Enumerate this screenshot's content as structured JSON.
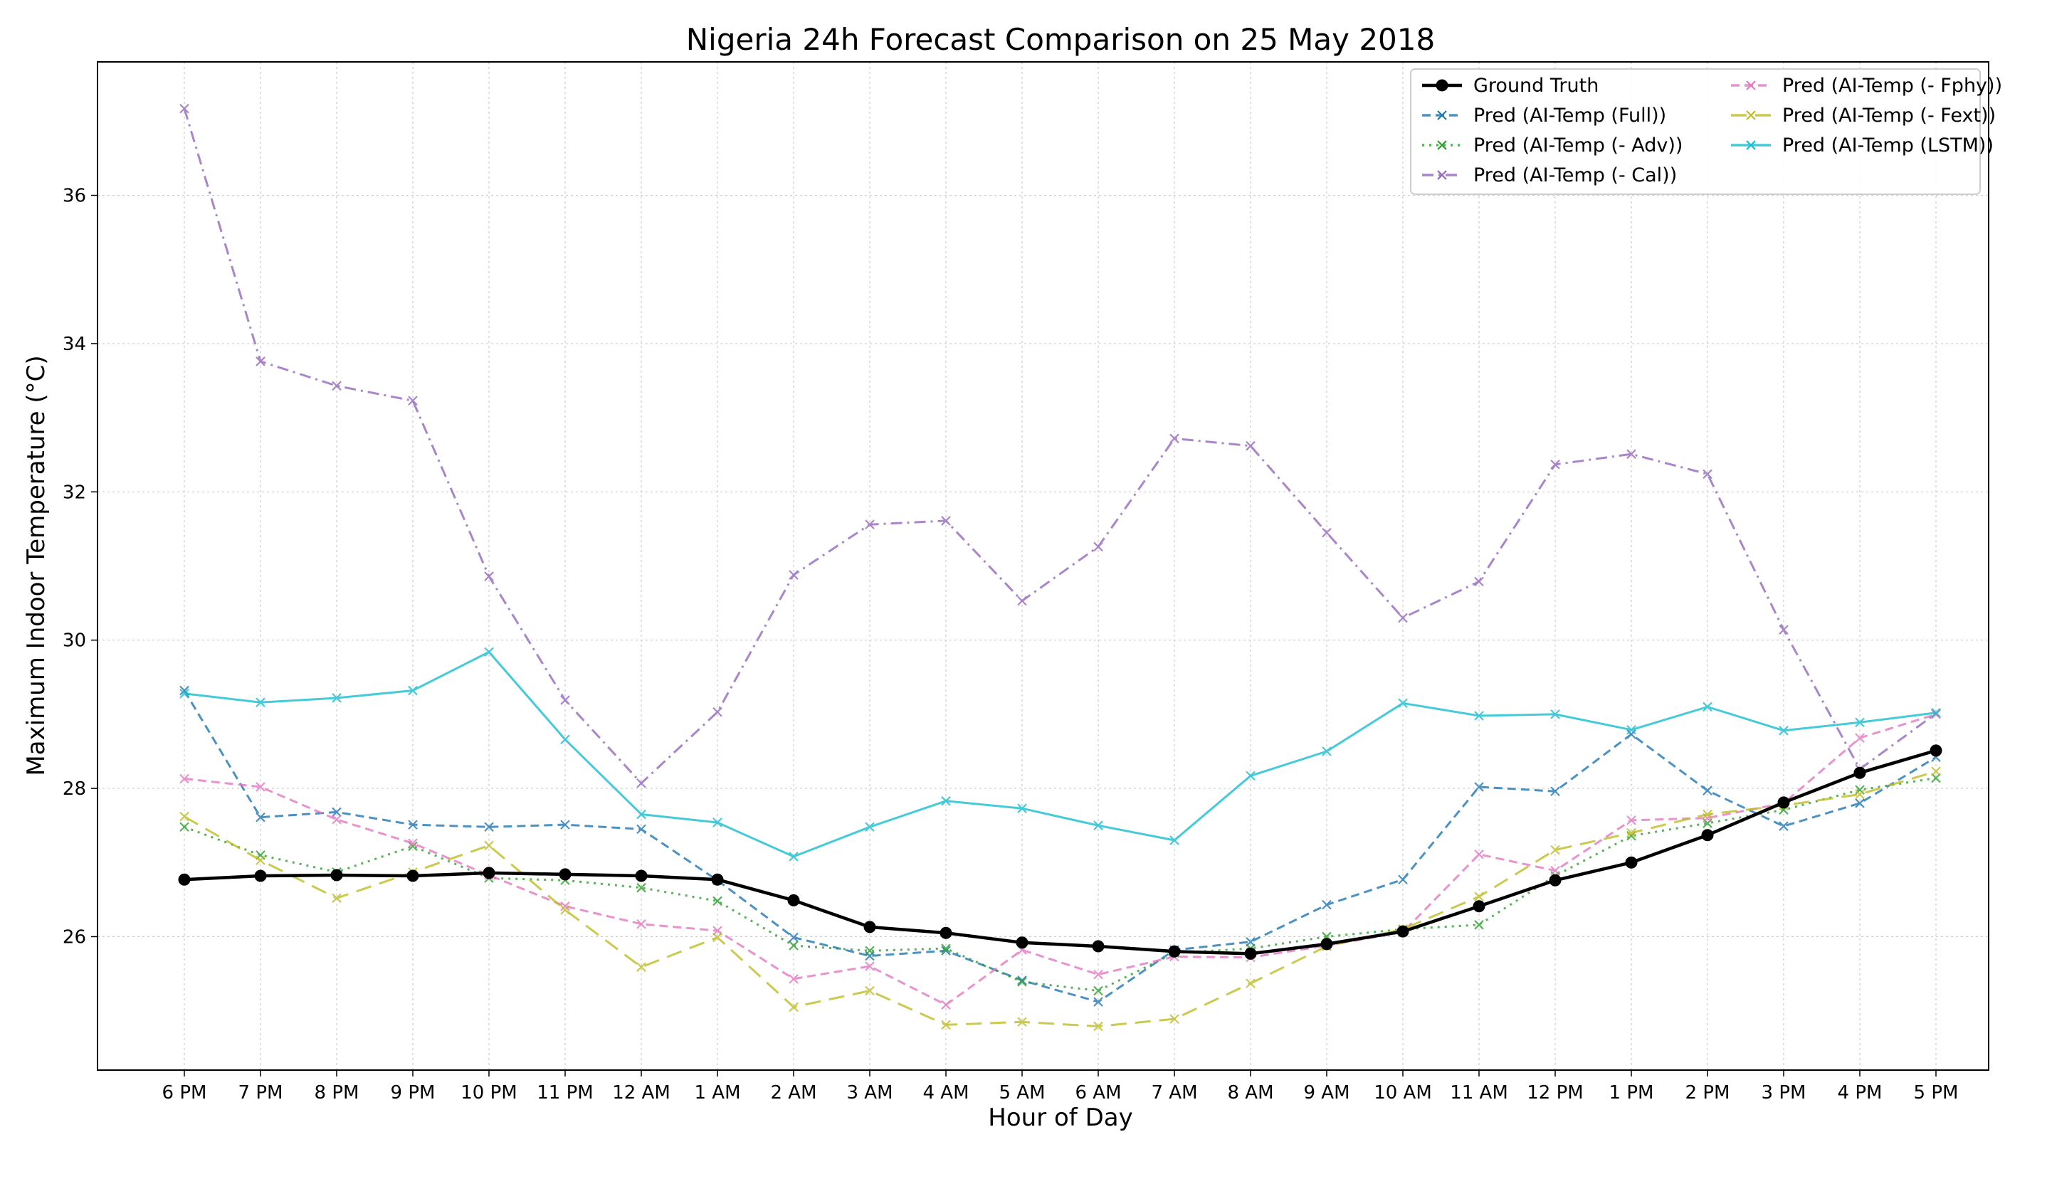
{
  "chart_data": {
    "type": "line",
    "title": "Nigeria 24h Forecast Comparison on 25 May 2018",
    "xlabel": "Hour of Day",
    "ylabel": "Maximum Indoor Temperature (°C)",
    "categories": [
      "6 PM",
      "7 PM",
      "8 PM",
      "9 PM",
      "10 PM",
      "11 PM",
      "12 AM",
      "1 AM",
      "2 AM",
      "3 AM",
      "4 AM",
      "5 AM",
      "6 AM",
      "7 AM",
      "8 AM",
      "9 AM",
      "10 AM",
      "11 AM",
      "12 PM",
      "1 PM",
      "2 PM",
      "3 PM",
      "4 PM",
      "5 PM"
    ],
    "ylim": [
      24.2,
      37.8
    ],
    "yticks": [
      26,
      28,
      30,
      32,
      34,
      36
    ],
    "grid": true,
    "legend_position": "top-right",
    "series": [
      {
        "name": "Ground Truth",
        "color": "#000000",
        "style": "solid",
        "marker": "circle",
        "values": [
          26.77,
          26.82,
          26.83,
          26.82,
          26.86,
          26.84,
          26.82,
          26.77,
          26.49,
          26.13,
          26.05,
          25.92,
          25.87,
          25.8,
          25.77,
          25.9,
          26.07,
          26.41,
          26.76,
          27.0,
          27.37,
          27.81,
          28.21,
          28.51
        ]
      },
      {
        "name": "Pred (AI-Temp (Full))",
        "color": "#1f77b4",
        "style": "dashed",
        "marker": "x",
        "values": [
          29.32,
          27.61,
          27.68,
          27.51,
          27.48,
          27.51,
          27.45,
          26.76,
          25.99,
          25.74,
          25.81,
          25.41,
          25.12,
          25.82,
          25.93,
          26.43,
          26.77,
          28.02,
          27.96,
          28.73,
          27.97,
          27.49,
          27.8,
          28.42
        ]
      },
      {
        "name": "Pred (AI-Temp (- Adv))",
        "color": "#2ca02c",
        "style": "dotted",
        "marker": "x",
        "values": [
          27.48,
          27.1,
          26.87,
          27.22,
          26.79,
          26.76,
          26.66,
          26.48,
          25.88,
          25.81,
          25.84,
          25.39,
          25.27,
          25.78,
          25.84,
          26.0,
          26.1,
          26.16,
          26.82,
          27.36,
          27.53,
          27.71,
          27.98,
          28.14
        ]
      },
      {
        "name": "Pred (AI-Temp (- Cal))",
        "color": "#9467bd",
        "style": "dashdot",
        "marker": "x",
        "values": [
          37.17,
          33.76,
          33.43,
          33.23,
          30.86,
          29.19,
          28.07,
          29.03,
          30.88,
          31.56,
          31.61,
          30.53,
          31.26,
          32.72,
          32.62,
          31.45,
          30.3,
          30.79,
          32.37,
          32.51,
          32.24,
          30.14,
          28.26,
          29.01
        ]
      },
      {
        "name": "Pred (AI-Temp (- Fphy))",
        "color": "#e377c2",
        "style": "dashed",
        "marker": "x",
        "values": [
          28.13,
          28.02,
          27.58,
          27.26,
          26.83,
          26.41,
          26.17,
          26.08,
          25.43,
          25.6,
          25.08,
          25.82,
          25.49,
          25.73,
          25.72,
          25.88,
          26.06,
          27.11,
          26.89,
          27.57,
          27.6,
          27.8,
          28.68,
          29.0
        ]
      },
      {
        "name": "Pred (AI-Temp (- Fext))",
        "color": "#bcbd22",
        "style": "longdash",
        "marker": "x",
        "values": [
          27.62,
          27.03,
          26.52,
          26.87,
          27.23,
          26.36,
          25.59,
          25.99,
          25.05,
          25.27,
          24.81,
          24.85,
          24.79,
          24.89,
          25.37,
          25.87,
          26.1,
          26.54,
          27.17,
          27.4,
          27.65,
          27.77,
          27.92,
          28.23
        ]
      },
      {
        "name": "Pred (AI-Temp (LSTM))",
        "color": "#17becf",
        "style": "solid",
        "marker": "x",
        "values": [
          29.28,
          29.16,
          29.22,
          29.32,
          29.84,
          28.66,
          27.65,
          27.54,
          27.08,
          27.48,
          27.83,
          27.73,
          27.5,
          27.3,
          28.17,
          28.5,
          29.15,
          28.98,
          29.0,
          28.79,
          29.1,
          28.78,
          28.89,
          29.02
        ]
      }
    ]
  }
}
